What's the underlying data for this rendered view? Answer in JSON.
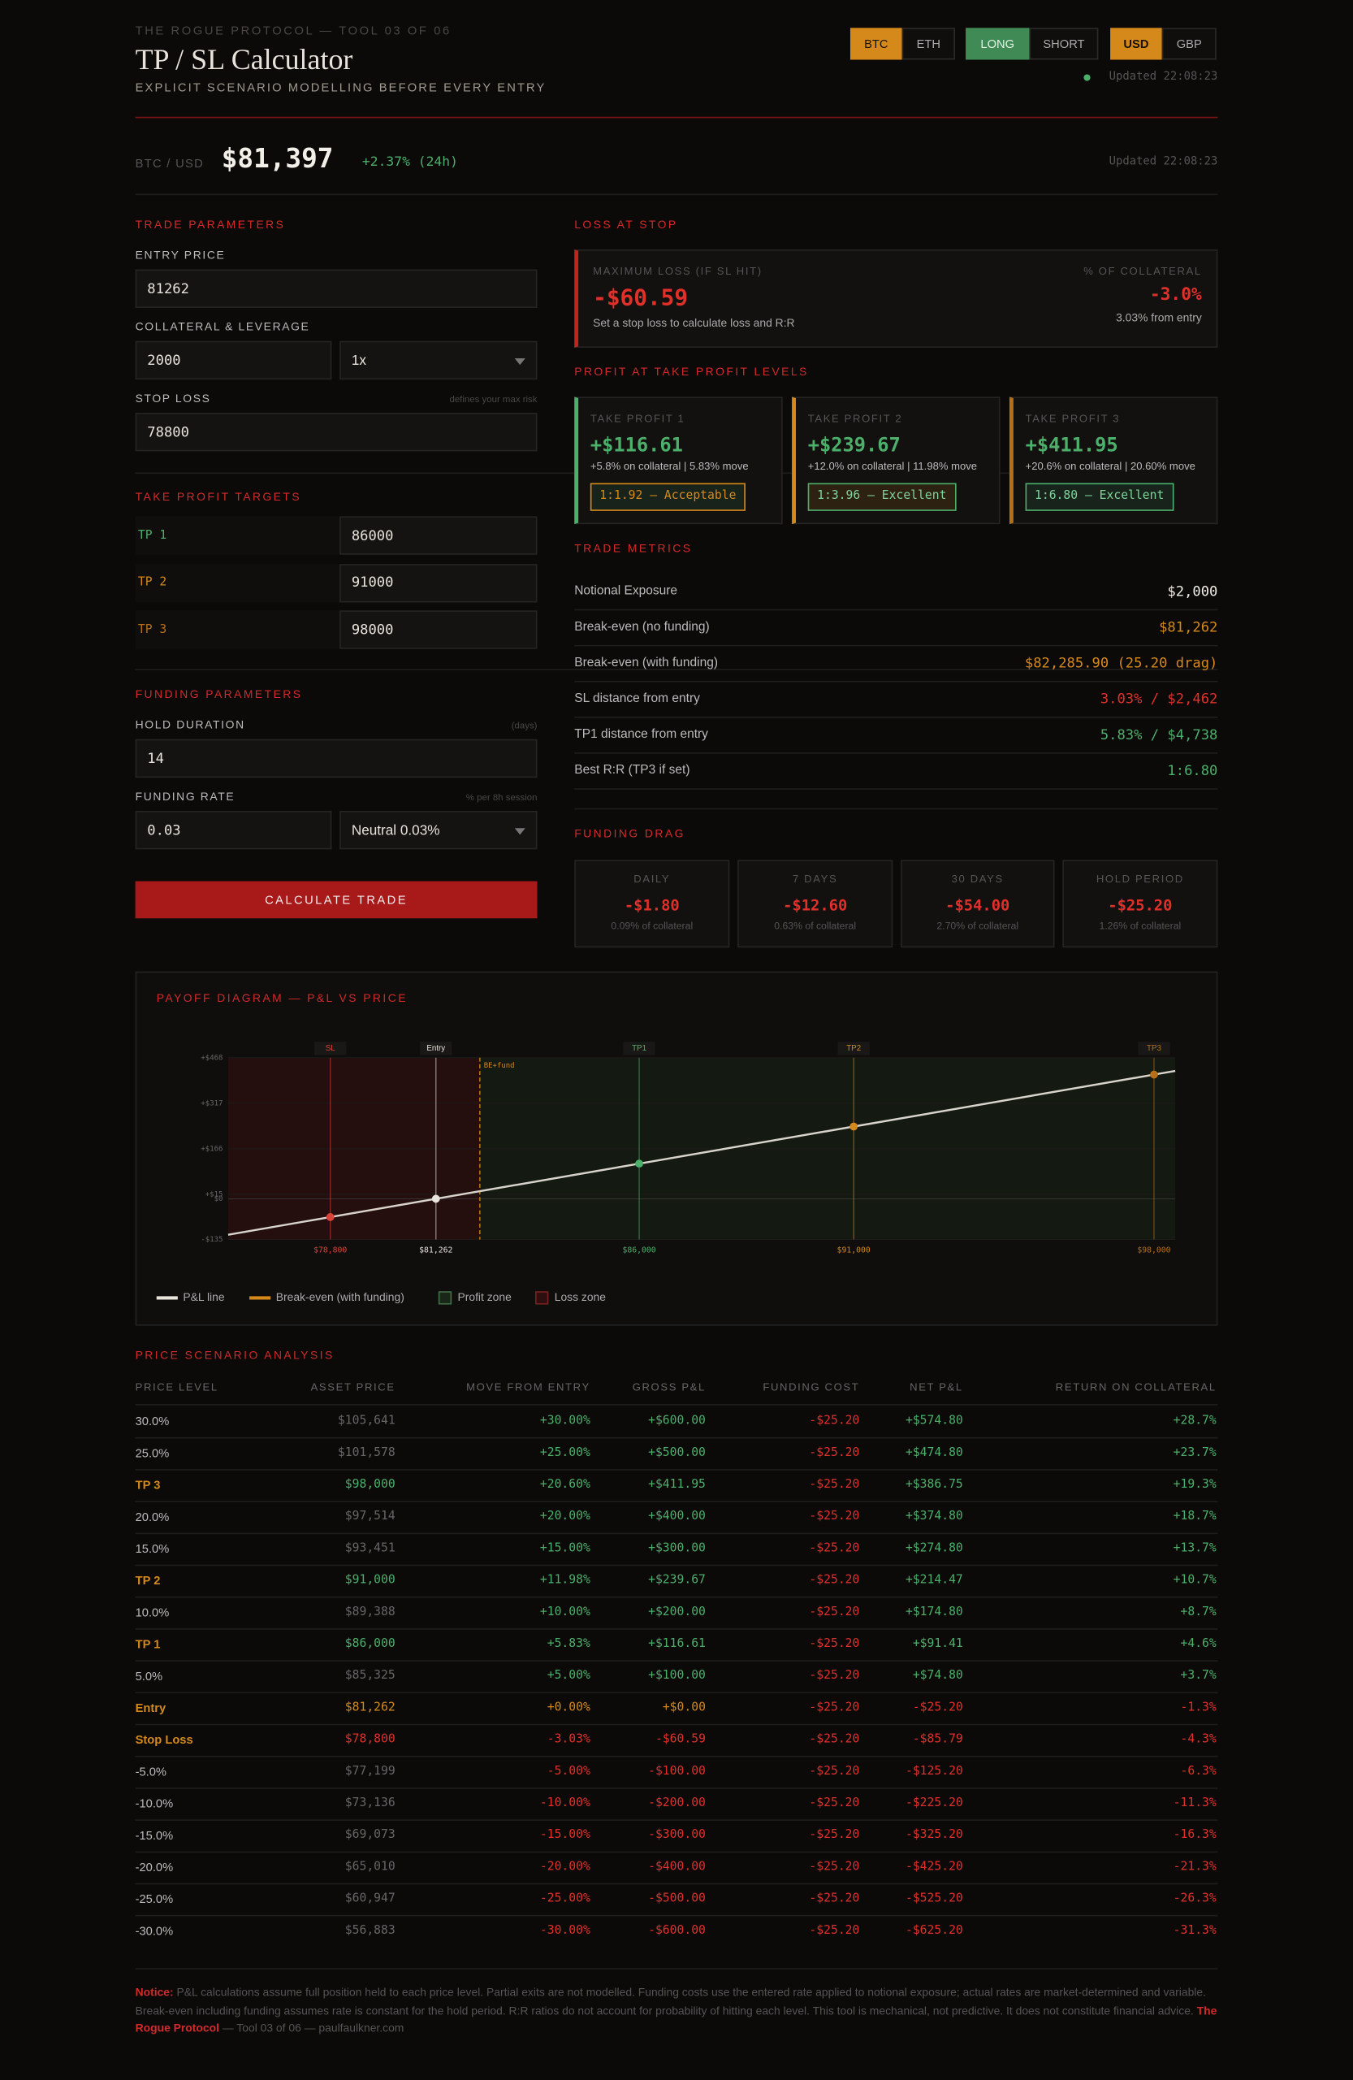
{
  "header": {
    "kicker": "THE ROGUE PROTOCOL — TOOL 03 OF 06",
    "title": "TP / SL Calculator",
    "subtitle": "EXPLICIT SCENARIO MODELLING BEFORE EVERY ENTRY",
    "toggles": [
      [
        "BTC",
        "ETH"
      ],
      [
        "LONG",
        "SHORT"
      ],
      [
        "USD",
        "GBP"
      ]
    ],
    "updated": "Updated 22:08:23"
  },
  "ticker": {
    "pair": "BTC / USD",
    "price": "$81,397",
    "change": "+2.37% (24h)",
    "updated": "Updated 22:08:23"
  },
  "trade_parameters": {
    "heading": "TRADE PARAMETERS",
    "entry_label": "ENTRY PRICE",
    "entry": "81262",
    "collateral_label": "COLLATERAL & LEVERAGE",
    "collateral": "2000",
    "leverage": "1x",
    "stop_label": "STOP LOSS",
    "stop_hint": "defines your max risk",
    "stop": "78800"
  },
  "take_profit_targets": {
    "heading": "TAKE PROFIT TARGETS",
    "targets": [
      {
        "label": "TP 1",
        "value": "86000"
      },
      {
        "label": "TP 2",
        "value": "91000"
      },
      {
        "label": "TP 3",
        "value": "98000"
      }
    ]
  },
  "funding_parameters": {
    "heading": "FUNDING PARAMETERS",
    "hold_label": "HOLD DURATION",
    "hold_hint": "(days)",
    "hold": "14",
    "rate_label": "FUNDING RATE",
    "rate_hint": "% per 8h session",
    "rate": "0.03",
    "rate_preset": "Neutral 0.03%"
  },
  "button": "CALCULATE TRADE",
  "loss_at_stop": {
    "heading": "LOSS AT STOP",
    "label": "MAXIMUM LOSS (IF SL HIT)",
    "value": "-$60.59",
    "note": "Set a stop loss to calculate loss and R:R",
    "pct_label": "% OF COLLATERAL",
    "pct": "-3.0%",
    "pct_note": "3.03% from entry"
  },
  "profit_levels": {
    "heading": "PROFIT AT TAKE PROFIT LEVELS",
    "cards": [
      {
        "label": "TAKE PROFIT 1",
        "value": "+$116.61",
        "note": "+5.8% on collateral | 5.83% move",
        "badge": "1:1.92 — Acceptable"
      },
      {
        "label": "TAKE PROFIT 2",
        "value": "+$239.67",
        "note": "+12.0% on collateral | 11.98% move",
        "badge": "1:3.96 — Excellent"
      },
      {
        "label": "TAKE PROFIT 3",
        "value": "+$411.95",
        "note": "+20.6% on collateral | 20.60% move",
        "badge": "1:6.80 — Excellent"
      }
    ]
  },
  "trade_metrics": {
    "heading": "TRADE METRICS",
    "rows": [
      [
        "Notional Exposure",
        "$2,000"
      ],
      [
        "Break-even (no funding)",
        "$81,262"
      ],
      [
        "Break-even (with funding)",
        "$82,285.90 (25.20 drag)"
      ],
      [
        "SL distance from entry",
        "3.03% / $2,462"
      ],
      [
        "TP1 distance from entry",
        "5.83% / $4,738"
      ],
      [
        "Best R:R (TP3 if set)",
        "1:6.80"
      ]
    ]
  },
  "funding_drag": {
    "heading": "FUNDING DRAG",
    "cards": [
      [
        "DAILY",
        "-$1.80",
        "0.09% of collateral"
      ],
      [
        "7 DAYS",
        "-$12.60",
        "0.63% of collateral"
      ],
      [
        "30 DAYS",
        "-$54.00",
        "2.70% of collateral"
      ],
      [
        "HOLD PERIOD",
        "-$25.20",
        "1.26% of collateral"
      ]
    ]
  },
  "chart_data": {
    "type": "line",
    "title": "PAYOFF DIAGRAM — P&L VS PRICE",
    "x": [
      78800,
      81262,
      86000,
      91000,
      98000
    ],
    "values": [
      -60.59,
      0,
      116.61,
      239.67,
      411.95
    ],
    "point_labels": [
      "SL",
      "Entry",
      "TP1",
      "TP2",
      "TP3"
    ],
    "point_colors": [
      "#d9443a",
      "#e8e4dc",
      "#4caf6a",
      "#d4891a",
      "#b5701a"
    ],
    "color": "#d8d4cc",
    "xlim": [
      76419,
      98495
    ],
    "xticks": [
      {
        "value": 78800,
        "label": "$78,800"
      },
      {
        "value": 81262,
        "label": "$81,262"
      },
      {
        "value": 86000,
        "label": "$86,000"
      },
      {
        "value": 91000,
        "label": "$91,000"
      },
      {
        "value": 98000,
        "label": "$98,000"
      }
    ],
    "ylim": [
      -135,
      468
    ],
    "yticks": [
      {
        "value": 468,
        "label": "+$468"
      },
      {
        "value": 317,
        "label": "+$317"
      },
      {
        "value": 166,
        "label": "+$166"
      },
      {
        "value": 15,
        "label": "+$15"
      },
      {
        "value": 0,
        "label": "$0"
      },
      {
        "value": -135,
        "label": "-$135"
      }
    ],
    "breakeven": {
      "value": 82285.9,
      "label": "BE+fund",
      "color": "#d4891a"
    },
    "legend": [
      "P&L line",
      "Break-even (with funding)",
      "Profit zone",
      "Loss zone"
    ]
  },
  "scenarios": {
    "heading": "PRICE SCENARIO ANALYSIS",
    "columns": [
      "PRICE LEVEL",
      "ASSET PRICE",
      "MOVE FROM ENTRY",
      "GROSS P&L",
      "FUNDING COST",
      "NET P&L",
      "RETURN ON COLLATERAL"
    ],
    "rows": [
      [
        "30.0%",
        "$105,641",
        "+30.00%",
        "+$600.00",
        "-$25.20",
        "+$574.80",
        "+28.7%"
      ],
      [
        "25.0%",
        "$101,578",
        "+25.00%",
        "+$500.00",
        "-$25.20",
        "+$474.80",
        "+23.7%"
      ],
      [
        "TP 3",
        "$98,000",
        "+20.60%",
        "+$411.95",
        "-$25.20",
        "+$386.75",
        "+19.3%"
      ],
      [
        "20.0%",
        "$97,514",
        "+20.00%",
        "+$400.00",
        "-$25.20",
        "+$374.80",
        "+18.7%"
      ],
      [
        "15.0%",
        "$93,451",
        "+15.00%",
        "+$300.00",
        "-$25.20",
        "+$274.80",
        "+13.7%"
      ],
      [
        "TP 2",
        "$91,000",
        "+11.98%",
        "+$239.67",
        "-$25.20",
        "+$214.47",
        "+10.7%"
      ],
      [
        "10.0%",
        "$89,388",
        "+10.00%",
        "+$200.00",
        "-$25.20",
        "+$174.80",
        "+8.7%"
      ],
      [
        "TP 1",
        "$86,000",
        "+5.83%",
        "+$116.61",
        "-$25.20",
        "+$91.41",
        "+4.6%"
      ],
      [
        "5.0%",
        "$85,325",
        "+5.00%",
        "+$100.00",
        "-$25.20",
        "+$74.80",
        "+3.7%"
      ],
      [
        "Entry",
        "$81,262",
        "+0.00%",
        "+$0.00",
        "-$25.20",
        "-$25.20",
        "-1.3%"
      ],
      [
        "Stop Loss",
        "$78,800",
        "-3.03%",
        "-$60.59",
        "-$25.20",
        "-$85.79",
        "-4.3%"
      ],
      [
        "-5.0%",
        "$77,199",
        "-5.00%",
        "-$100.00",
        "-$25.20",
        "-$125.20",
        "-6.3%"
      ],
      [
        "-10.0%",
        "$73,136",
        "-10.00%",
        "-$200.00",
        "-$25.20",
        "-$225.20",
        "-11.3%"
      ],
      [
        "-15.0%",
        "$69,073",
        "-15.00%",
        "-$300.00",
        "-$25.20",
        "-$325.20",
        "-16.3%"
      ],
      [
        "-20.0%",
        "$65,010",
        "-20.00%",
        "-$400.00",
        "-$25.20",
        "-$425.20",
        "-21.3%"
      ],
      [
        "-25.0%",
        "$60,947",
        "-25.00%",
        "-$500.00",
        "-$25.20",
        "-$525.20",
        "-26.3%"
      ],
      [
        "-30.0%",
        "$56,883",
        "-30.00%",
        "-$600.00",
        "-$25.20",
        "-$625.20",
        "-31.3%"
      ]
    ]
  },
  "footer": {
    "notice_label": "Notice:",
    "notice": " P&L calculations assume full position held to each price level. Partial exits are not modelled. Funding costs use the entered rate applied to notional exposure; actual rates are market-determined and variable. Break-even including funding assumes rate is constant for the hold period. R:R ratios do not account for probability of hitting each level. This tool is mechanical, not predictive. It does not constitute financial advice. ",
    "brand": "The Rogue Protocol",
    "suffix": " — Tool 03 of 06 — paulfaulkner.com"
  }
}
